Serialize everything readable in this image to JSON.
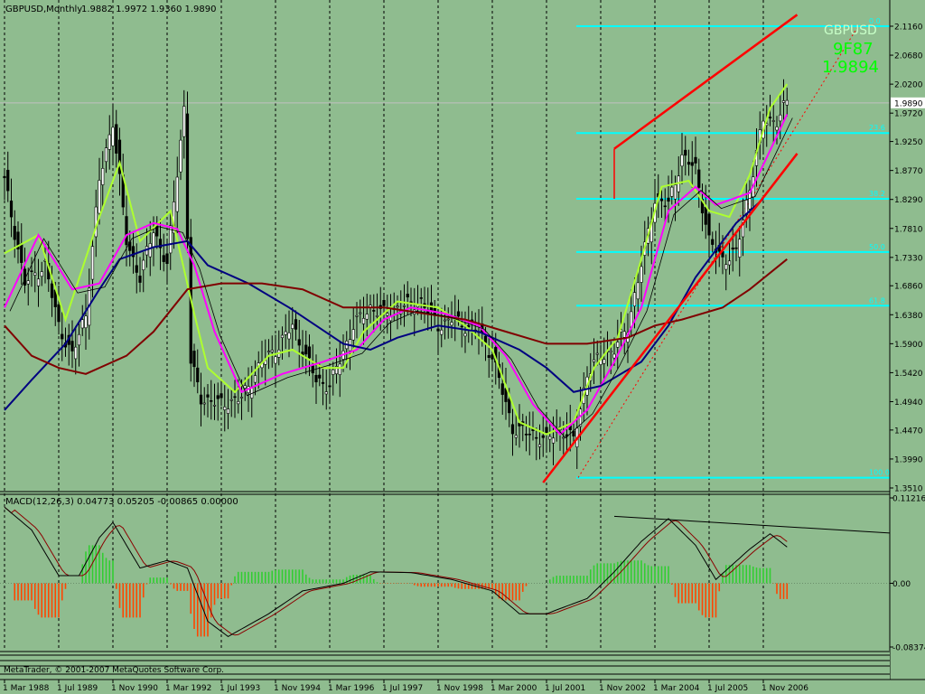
{
  "header": {
    "symbol_label": "GBPUSD,Monthly",
    "ohlc": "1.9882 1.9972 1.9360 1.9890"
  },
  "price_axis": {
    "ticks": [
      "2.1160",
      "2.0680",
      "2.0200",
      "1.9720",
      "1.9250",
      "1.8770",
      "1.8290",
      "1.7810",
      "1.7330",
      "1.6860",
      "1.6380",
      "1.5900",
      "1.5420",
      "1.4940",
      "1.4470",
      "1.3990",
      "1.3510"
    ],
    "current_price": "1.9890"
  },
  "macd_axis": {
    "ticks": [
      "0.11216",
      "0.00",
      "-0.08374"
    ]
  },
  "time_axis": {
    "labels": [
      "1 Mar 1988",
      "1 Jul 1989",
      "1 Nov 1990",
      "1 Mar 1992",
      "1 Jul 1993",
      "1 Nov 1994",
      "1 Mar 1996",
      "1 Jul 1997",
      "1 Nov 1998",
      "1 Mar 2000",
      "1 Jul 2001",
      "1 Nov 2002",
      "1 Mar 2004",
      "1 Jul 2005",
      "1 Nov 2006"
    ]
  },
  "macd_header": {
    "label": "MACD(12,26,3) 0.04773 0.05205 -0.00865 0.00000"
  },
  "fib_labels": [
    "0.0",
    "23.6",
    "38.2",
    "50.0",
    "61.8",
    "100.0"
  ],
  "overlay_text": {
    "symbol": "GBPUSD",
    "top_value": "9F87",
    "bottom_value": "1.9894"
  },
  "copyright": "MetaTrader, © 2001-2007 MetaQuotes Software Corp.",
  "colors": {
    "background": "#8fbc8f",
    "fib_lines": "#00ffff",
    "channel": "#ff0000",
    "ma_fast": "#adff2f",
    "ma_mid": "#ff00ff",
    "ma_slow": "#000080",
    "ma_long": "#800000",
    "macd_up": "#32cd32",
    "macd_down": "#ff4500"
  },
  "chart_data": {
    "type": "candlestick",
    "symbol": "GBPUSD",
    "timeframe": "Monthly",
    "ylim": [
      1.351,
      2.116
    ],
    "x_range": [
      "1988-03",
      "2007-06"
    ],
    "grid": "vertical dashed",
    "close_series": [
      {
        "date": "1988-03",
        "close": 1.86
      },
      {
        "date": "1988-09",
        "close": 1.69
      },
      {
        "date": "1989-03",
        "close": 1.72
      },
      {
        "date": "1989-07",
        "close": 1.62
      },
      {
        "date": "1989-11",
        "close": 1.57
      },
      {
        "date": "1990-03",
        "close": 1.64
      },
      {
        "date": "1990-07",
        "close": 1.86
      },
      {
        "date": "1990-11",
        "close": 1.96
      },
      {
        "date": "1991-03",
        "close": 1.76
      },
      {
        "date": "1991-07",
        "close": 1.7
      },
      {
        "date": "1991-11",
        "close": 1.78
      },
      {
        "date": "1992-03",
        "close": 1.72
      },
      {
        "date": "1992-08",
        "close": 1.98
      },
      {
        "date": "1992-10",
        "close": 1.56
      },
      {
        "date": "1993-01",
        "close": 1.5
      },
      {
        "date": "1993-07",
        "close": 1.49
      },
      {
        "date": "1994-01",
        "close": 1.5
      },
      {
        "date": "1994-07",
        "close": 1.56
      },
      {
        "date": "1994-11",
        "close": 1.58
      },
      {
        "date": "1995-04",
        "close": 1.62
      },
      {
        "date": "1995-11",
        "close": 1.53
      },
      {
        "date": "1996-03",
        "close": 1.52
      },
      {
        "date": "1996-10",
        "close": 1.62
      },
      {
        "date": "1997-03",
        "close": 1.65
      },
      {
        "date": "1997-07",
        "close": 1.64
      },
      {
        "date": "1997-11",
        "close": 1.65
      },
      {
        "date": "1998-06",
        "close": 1.66
      },
      {
        "date": "1998-11",
        "close": 1.62
      },
      {
        "date": "1999-03",
        "close": 1.63
      },
      {
        "date": "1999-11",
        "close": 1.61
      },
      {
        "date": "2000-03",
        "close": 1.57
      },
      {
        "date": "2000-09",
        "close": 1.45
      },
      {
        "date": "2001-03",
        "close": 1.44
      },
      {
        "date": "2001-07",
        "close": 1.43
      },
      {
        "date": "2001-11",
        "close": 1.45
      },
      {
        "date": "2002-03",
        "close": 1.43
      },
      {
        "date": "2002-07",
        "close": 1.54
      },
      {
        "date": "2002-11",
        "close": 1.57
      },
      {
        "date": "2003-03",
        "close": 1.58
      },
      {
        "date": "2003-07",
        "close": 1.62
      },
      {
        "date": "2003-11",
        "close": 1.72
      },
      {
        "date": "2004-03",
        "close": 1.83
      },
      {
        "date": "2004-07",
        "close": 1.82
      },
      {
        "date": "2004-11",
        "close": 1.9
      },
      {
        "date": "2005-03",
        "close": 1.88
      },
      {
        "date": "2005-07",
        "close": 1.76
      },
      {
        "date": "2005-11",
        "close": 1.73
      },
      {
        "date": "2006-03",
        "close": 1.74
      },
      {
        "date": "2006-07",
        "close": 1.85
      },
      {
        "date": "2006-11",
        "close": 1.96
      },
      {
        "date": "2007-03",
        "close": 1.96
      },
      {
        "date": "2007-06",
        "close": 1.989
      }
    ],
    "fibonacci": [
      {
        "label": "0.0",
        "price": 2.116
      },
      {
        "label": "23.6",
        "price": 1.939
      },
      {
        "label": "38.2",
        "price": 1.83
      },
      {
        "label": "50.0",
        "price": 1.742
      },
      {
        "label": "61.8",
        "price": 1.653
      },
      {
        "label": "100.0",
        "price": 1.368
      }
    ],
    "channel_lines": [
      {
        "from": {
          "date": "2001-06",
          "price": 1.36
        },
        "to": {
          "date": "2007-09",
          "price": 1.905
        }
      },
      {
        "from": {
          "date": "2003-03",
          "price": 1.913
        },
        "to": {
          "date": "2007-09",
          "price": 2.135
        }
      }
    ],
    "moving_averages": [
      {
        "color": "#adff2f",
        "points": [
          {
            "date": "1988-03",
            "value": 1.74
          },
          {
            "date": "1989-01",
            "value": 1.77
          },
          {
            "date": "1989-09",
            "value": 1.63
          },
          {
            "date": "1990-07",
            "value": 1.8
          },
          {
            "date": "1991-01",
            "value": 1.89
          },
          {
            "date": "1991-07",
            "value": 1.76
          },
          {
            "date": "1992-04",
            "value": 1.81
          },
          {
            "date": "1992-11",
            "value": 1.64
          },
          {
            "date": "1993-03",
            "value": 1.55
          },
          {
            "date": "1993-11",
            "value": 1.51
          },
          {
            "date": "1994-09",
            "value": 1.57
          },
          {
            "date": "1995-04",
            "value": 1.58
          },
          {
            "date": "1996-01",
            "value": 1.55
          },
          {
            "date": "1996-07",
            "value": 1.55
          },
          {
            "date": "1997-01",
            "value": 1.61
          },
          {
            "date": "1997-11",
            "value": 1.66
          },
          {
            "date": "1998-11",
            "value": 1.65
          },
          {
            "date": "1999-07",
            "value": 1.62
          },
          {
            "date": "2000-03",
            "value": 1.58
          },
          {
            "date": "2000-11",
            "value": 1.46
          },
          {
            "date": "2001-07",
            "value": 1.44
          },
          {
            "date": "2002-03",
            "value": 1.46
          },
          {
            "date": "2002-09",
            "value": 1.55
          },
          {
            "date": "2003-04",
            "value": 1.6
          },
          {
            "date": "2003-11",
            "value": 1.73
          },
          {
            "date": "2004-05",
            "value": 1.85
          },
          {
            "date": "2005-01",
            "value": 1.86
          },
          {
            "date": "2005-07",
            "value": 1.81
          },
          {
            "date": "2006-01",
            "value": 1.8
          },
          {
            "date": "2006-07",
            "value": 1.87
          },
          {
            "date": "2007-01",
            "value": 1.98
          },
          {
            "date": "2007-06",
            "value": 2.02
          }
        ]
      },
      {
        "color": "#ff00ff",
        "points": [
          {
            "date": "1988-03",
            "value": 1.65
          },
          {
            "date": "1989-01",
            "value": 1.77
          },
          {
            "date": "1989-11",
            "value": 1.68
          },
          {
            "date": "1990-07",
            "value": 1.69
          },
          {
            "date": "1991-03",
            "value": 1.77
          },
          {
            "date": "1991-11",
            "value": 1.79
          },
          {
            "date": "1992-06",
            "value": 1.78
          },
          {
            "date": "1992-11",
            "value": 1.72
          },
          {
            "date": "1993-05",
            "value": 1.61
          },
          {
            "date": "1994-01",
            "value": 1.51
          },
          {
            "date": "1995-01",
            "value": 1.54
          },
          {
            "date": "1996-01",
            "value": 1.56
          },
          {
            "date": "1996-11",
            "value": 1.58
          },
          {
            "date": "1997-07",
            "value": 1.63
          },
          {
            "date": "1998-03",
            "value": 1.65
          },
          {
            "date": "1999-01",
            "value": 1.64
          },
          {
            "date": "1999-11",
            "value": 1.62
          },
          {
            "date": "2000-07",
            "value": 1.57
          },
          {
            "date": "2001-03",
            "value": 1.49
          },
          {
            "date": "2001-11",
            "value": 1.44
          },
          {
            "date": "2002-07",
            "value": 1.48
          },
          {
            "date": "2003-03",
            "value": 1.56
          },
          {
            "date": "2003-11",
            "value": 1.65
          },
          {
            "date": "2004-07",
            "value": 1.81
          },
          {
            "date": "2005-03",
            "value": 1.85
          },
          {
            "date": "2005-09",
            "value": 1.82
          },
          {
            "date": "2006-07",
            "value": 1.84
          },
          {
            "date": "2007-01",
            "value": 1.91
          },
          {
            "date": "2007-06",
            "value": 1.97
          }
        ]
      },
      {
        "color": "#000080",
        "points": [
          {
            "date": "1988-03",
            "value": 1.48
          },
          {
            "date": "1988-11",
            "value": 1.53
          },
          {
            "date": "1989-09",
            "value": 1.59
          },
          {
            "date": "1990-07",
            "value": 1.68
          },
          {
            "date": "1991-01",
            "value": 1.73
          },
          {
            "date": "1991-11",
            "value": 1.75
          },
          {
            "date": "1992-09",
            "value": 1.76
          },
          {
            "date": "1993-03",
            "value": 1.72
          },
          {
            "date": "1994-03",
            "value": 1.69
          },
          {
            "date": "1995-03",
            "value": 1.65
          },
          {
            "date": "1996-07",
            "value": 1.59
          },
          {
            "date": "1997-03",
            "value": 1.58
          },
          {
            "date": "1997-11",
            "value": 1.6
          },
          {
            "date": "1998-11",
            "value": 1.62
          },
          {
            "date": "1999-11",
            "value": 1.61
          },
          {
            "date": "2000-11",
            "value": 1.58
          },
          {
            "date": "2001-07",
            "value": 1.55
          },
          {
            "date": "2002-03",
            "value": 1.51
          },
          {
            "date": "2002-11",
            "value": 1.52
          },
          {
            "date": "2003-11",
            "value": 1.56
          },
          {
            "date": "2004-07",
            "value": 1.62
          },
          {
            "date": "2005-03",
            "value": 1.7
          },
          {
            "date": "2006-03",
            "value": 1.79
          },
          {
            "date": "2006-11",
            "value": 1.83
          }
        ]
      },
      {
        "color": "#800000",
        "points": [
          {
            "date": "1988-03",
            "value": 1.62
          },
          {
            "date": "1988-11",
            "value": 1.57
          },
          {
            "date": "1989-07",
            "value": 1.55
          },
          {
            "date": "1990-03",
            "value": 1.54
          },
          {
            "date": "1991-03",
            "value": 1.57
          },
          {
            "date": "1991-11",
            "value": 1.61
          },
          {
            "date": "1992-09",
            "value": 1.68
          },
          {
            "date": "1993-07",
            "value": 1.69
          },
          {
            "date": "1994-07",
            "value": 1.69
          },
          {
            "date": "1995-07",
            "value": 1.68
          },
          {
            "date": "1996-07",
            "value": 1.65
          },
          {
            "date": "1997-07",
            "value": 1.65
          },
          {
            "date": "1998-07",
            "value": 1.64
          },
          {
            "date": "1999-07",
            "value": 1.63
          },
          {
            "date": "2000-07",
            "value": 1.61
          },
          {
            "date": "2001-07",
            "value": 1.59
          },
          {
            "date": "2002-07",
            "value": 1.59
          },
          {
            "date": "2003-07",
            "value": 1.6
          },
          {
            "date": "2004-03",
            "value": 1.62
          },
          {
            "date": "2004-11",
            "value": 1.63
          },
          {
            "date": "2005-11",
            "value": 1.65
          },
          {
            "date": "2006-07",
            "value": 1.68
          },
          {
            "date": "2007-06",
            "value": 1.73
          }
        ]
      }
    ],
    "macd": {
      "ylim": [
        -0.08374,
        0.11216
      ],
      "main": [
        {
          "date": "1988-03",
          "value": 0.1
        },
        {
          "date": "1988-11",
          "value": 0.07
        },
        {
          "date": "1989-07",
          "value": 0.01
        },
        {
          "date": "1990-01",
          "value": 0.01
        },
        {
          "date": "1990-07",
          "value": 0.06
        },
        {
          "date": "1990-11",
          "value": 0.08
        },
        {
          "date": "1991-07",
          "value": 0.02
        },
        {
          "date": "1992-03",
          "value": 0.03
        },
        {
          "date": "1992-09",
          "value": 0.02
        },
        {
          "date": "1993-03",
          "value": -0.05
        },
        {
          "date": "1993-09",
          "value": -0.07
        },
        {
          "date": "1994-09",
          "value": -0.04
        },
        {
          "date": "1995-07",
          "value": -0.01
        },
        {
          "date": "1996-07",
          "value": 0.0
        },
        {
          "date": "1997-03",
          "value": 0.015
        },
        {
          "date": "1998-03",
          "value": 0.014
        },
        {
          "date": "1999-03",
          "value": 0.005
        },
        {
          "date": "2000-03",
          "value": -0.01
        },
        {
          "date": "2000-11",
          "value": -0.04
        },
        {
          "date": "2001-07",
          "value": -0.04
        },
        {
          "date": "2002-07",
          "value": -0.02
        },
        {
          "date": "2003-03",
          "value": 0.015
        },
        {
          "date": "2003-11",
          "value": 0.055
        },
        {
          "date": "2004-07",
          "value": 0.085
        },
        {
          "date": "2005-03",
          "value": 0.05
        },
        {
          "date": "2005-09",
          "value": 0.005
        },
        {
          "date": "2006-07",
          "value": 0.045
        },
        {
          "date": "2007-01",
          "value": 0.065
        },
        {
          "date": "2007-06",
          "value": 0.04773
        }
      ],
      "signal_value": 0.05205,
      "histogram_value": -0.00865
    }
  }
}
